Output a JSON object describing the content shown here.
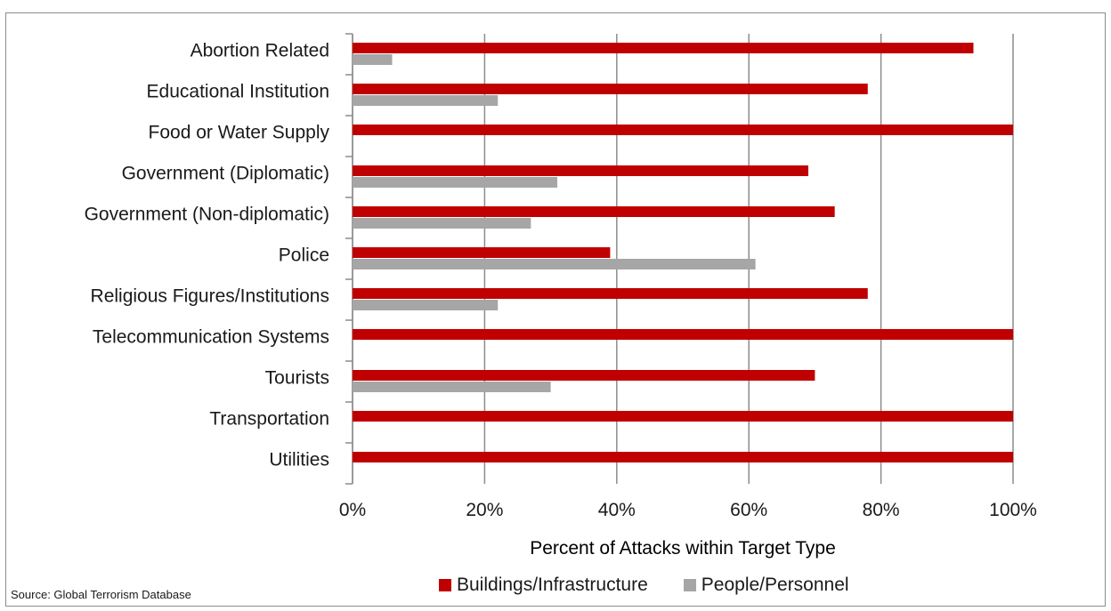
{
  "chart_data": {
    "type": "bar",
    "orientation": "horizontal",
    "categories": [
      "Abortion Related",
      "Educational Institution",
      "Food or Water Supply",
      "Government (Diplomatic)",
      "Government (Non-diplomatic)",
      "Police",
      "Religious Figures/Institutions",
      "Telecommunication Systems",
      "Tourists",
      "Transportation",
      "Utilities"
    ],
    "series": [
      {
        "name": "Buildings/Infrastructure",
        "color": "#c00000",
        "values": [
          94,
          78,
          100,
          69,
          73,
          39,
          78,
          100,
          70,
          100,
          100
        ]
      },
      {
        "name": "People/Personnel",
        "color": "#a6a6a6",
        "values": [
          6,
          22,
          0,
          31,
          27,
          61,
          22,
          0,
          30,
          0,
          0
        ]
      }
    ],
    "xlabel": "Percent of Attacks within Target Type",
    "xlim": [
      0,
      100
    ],
    "xticks": [
      "0%",
      "20%",
      "40%",
      "60%",
      "80%",
      "100%"
    ],
    "grid": "vertical",
    "legend_position": "bottom"
  },
  "source_note": "Source: Global Terrorism Database"
}
